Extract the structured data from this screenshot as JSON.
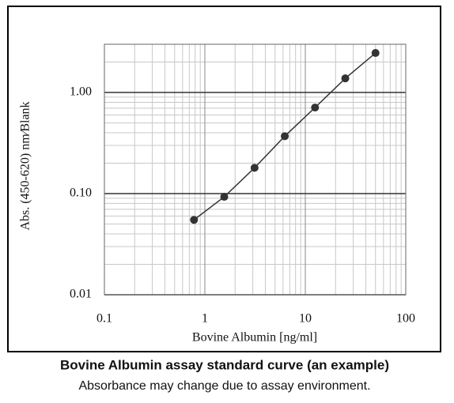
{
  "chart_data": {
    "type": "line",
    "title": "Bovine Albumin assay standard curve (an example)",
    "subtitle": "Absorbance may change due to assay environment.",
    "x_label": "Bovine Albumin [ng/ml]",
    "y_label": "Abs. (450-620) nm∕Blank",
    "x": [
      0.78,
      1.56,
      3.125,
      6.25,
      12.5,
      25,
      50
    ],
    "series": [
      {
        "color": "#333333",
        "values": [
          0.055,
          0.093,
          0.18,
          0.37,
          0.71,
          1.38,
          2.46
        ]
      }
    ],
    "xlim": [
      0.1,
      100
    ],
    "xticks": [
      0.1,
      1,
      10,
      100
    ],
    "ylim": [
      0.01,
      3
    ],
    "yticks": [
      {
        "value": 0.01,
        "label": "0.01"
      },
      {
        "value": 0.1,
        "label": "0.10"
      },
      {
        "value": 1,
        "label": "1.00"
      }
    ],
    "xlog": true,
    "ylog": true,
    "grid": true
  }
}
